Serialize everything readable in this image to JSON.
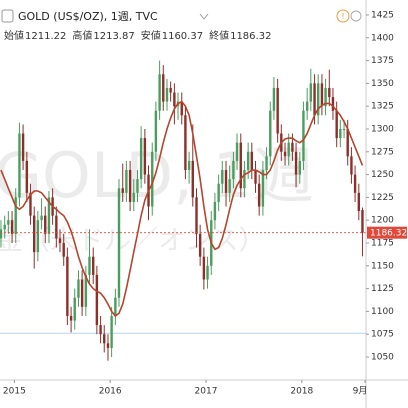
{
  "chart_data": {
    "type": "candlestick",
    "title": "GOLD (US$/OZ), 1週, TVC",
    "ohlc_header": [
      {
        "label": "始値",
        "value": 1211.22
      },
      {
        "label": "高値",
        "value": 1213.87
      },
      {
        "label": "安値",
        "value": 1160.37
      },
      {
        "label": "終値",
        "value": 1186.32
      }
    ],
    "watermark": [
      "GOLD, 1週",
      "金（米ドル／オンス）"
    ],
    "x": [
      2014.86,
      2014.899,
      2014.937,
      2014.976,
      2015.014,
      2015.053,
      2015.091,
      2015.13,
      2015.168,
      2015.207,
      2015.245,
      2015.284,
      2015.322,
      2015.361,
      2015.399,
      2015.438,
      2015.476,
      2015.515,
      2015.553,
      2015.592,
      2015.63,
      2015.669,
      2015.707,
      2015.746,
      2015.784,
      2015.823,
      2015.861,
      2015.9,
      2015.938,
      2015.977,
      2016.015,
      2016.054,
      2016.092,
      2016.131,
      2016.169,
      2016.208,
      2016.246,
      2016.285,
      2016.323,
      2016.362,
      2016.4,
      2016.439,
      2016.477,
      2016.516,
      2016.554,
      2016.593,
      2016.631,
      2016.67,
      2016.708,
      2016.747,
      2016.785,
      2016.824,
      2016.862,
      2016.901,
      2016.939,
      2016.978,
      2017.016,
      2017.055,
      2017.093,
      2017.132,
      2017.17,
      2017.209,
      2017.247,
      2017.286,
      2017.324,
      2017.363,
      2017.401,
      2017.44,
      2017.478,
      2017.517,
      2017.555,
      2017.594,
      2017.632,
      2017.671,
      2017.709,
      2017.748,
      2017.786,
      2017.825,
      2017.863,
      2017.902,
      2017.94,
      2017.979,
      2018.017,
      2018.056,
      2018.094,
      2018.133,
      2018.171,
      2018.21,
      2018.248,
      2018.287,
      2018.325,
      2018.364,
      2018.402,
      2018.441,
      2018.479,
      2018.518,
      2018.556,
      2018.595,
      2018.633
    ],
    "open": [
      1180,
      1190,
      1195,
      1200,
      1185,
      1225,
      1295,
      1265,
      1230,
      1205,
      1165,
      1200,
      1205,
      1185,
      1225,
      1205,
      1180,
      1175,
      1160,
      1095,
      1090,
      1115,
      1135,
      1105,
      1140,
      1160,
      1140,
      1085,
      1075,
      1065,
      1060,
      1095,
      1115,
      1235,
      1230,
      1255,
      1220,
      1230,
      1245,
      1290,
      1250,
      1215,
      1275,
      1320,
      1360,
      1330,
      1345,
      1340,
      1325,
      1330,
      1315,
      1255,
      1265,
      1225,
      1185,
      1160,
      1135,
      1150,
      1200,
      1220,
      1240,
      1255,
      1230,
      1245,
      1265,
      1285,
      1235,
      1255,
      1275,
      1255,
      1240,
      1215,
      1255,
      1270,
      1320,
      1345,
      1295,
      1275,
      1270,
      1285,
      1275,
      1250,
      1265,
      1320,
      1330,
      1350,
      1315,
      1350,
      1325,
      1345,
      1335,
      1320,
      1290,
      1300,
      1300,
      1270,
      1250,
      1230,
      1211.22
    ],
    "high": [
      1200,
      1205,
      1210,
      1210,
      1235,
      1307,
      1305,
      1275,
      1240,
      1215,
      1210,
      1224,
      1215,
      1232,
      1235,
      1215,
      1190,
      1185,
      1170,
      1105,
      1125,
      1145,
      1145,
      1150,
      1190,
      1170,
      1150,
      1095,
      1085,
      1075,
      1105,
      1125,
      1245,
      1262,
      1265,
      1265,
      1245,
      1255,
      1303,
      1300,
      1260,
      1285,
      1330,
      1375,
      1370,
      1355,
      1352,
      1350,
      1340,
      1340,
      1325,
      1275,
      1305,
      1235,
      1195,
      1170,
      1160,
      1210,
      1230,
      1250,
      1265,
      1265,
      1260,
      1275,
      1295,
      1295,
      1265,
      1285,
      1285,
      1265,
      1250,
      1265,
      1280,
      1330,
      1357,
      1355,
      1305,
      1285,
      1295,
      1295,
      1285,
      1275,
      1330,
      1345,
      1366,
      1360,
      1360,
      1360,
      1355,
      1365,
      1345,
      1330,
      1310,
      1310,
      1310,
      1280,
      1260,
      1240,
      1213.87
    ],
    "low": [
      1170,
      1180,
      1185,
      1175,
      1175,
      1215,
      1255,
      1220,
      1195,
      1147,
      1155,
      1190,
      1175,
      1175,
      1195,
      1170,
      1165,
      1150,
      1085,
      1077,
      1080,
      1105,
      1095,
      1095,
      1130,
      1130,
      1075,
      1065,
      1055,
      1046,
      1050,
      1085,
      1105,
      1220,
      1220,
      1210,
      1210,
      1220,
      1235,
      1240,
      1200,
      1205,
      1265,
      1310,
      1320,
      1320,
      1330,
      1305,
      1310,
      1305,
      1245,
      1240,
      1215,
      1170,
      1150,
      1124,
      1125,
      1140,
      1190,
      1210,
      1230,
      1215,
      1220,
      1235,
      1255,
      1225,
      1225,
      1245,
      1245,
      1230,
      1205,
      1205,
      1245,
      1260,
      1310,
      1285,
      1265,
      1260,
      1260,
      1265,
      1236,
      1240,
      1255,
      1310,
      1320,
      1305,
      1305,
      1315,
      1315,
      1325,
      1310,
      1280,
      1280,
      1290,
      1260,
      1240,
      1220,
      1200,
      1160.37
    ],
    "close": [
      1190,
      1195,
      1200,
      1185,
      1225,
      1295,
      1265,
      1230,
      1205,
      1165,
      1200,
      1205,
      1185,
      1225,
      1205,
      1180,
      1175,
      1160,
      1095,
      1090,
      1115,
      1135,
      1105,
      1140,
      1160,
      1140,
      1085,
      1075,
      1065,
      1060,
      1095,
      1115,
      1235,
      1230,
      1255,
      1220,
      1230,
      1245,
      1290,
      1250,
      1215,
      1275,
      1320,
      1360,
      1330,
      1345,
      1340,
      1325,
      1330,
      1315,
      1255,
      1265,
      1225,
      1185,
      1160,
      1135,
      1150,
      1200,
      1220,
      1240,
      1255,
      1230,
      1245,
      1265,
      1285,
      1235,
      1255,
      1275,
      1255,
      1240,
      1215,
      1255,
      1270,
      1320,
      1345,
      1295,
      1275,
      1270,
      1285,
      1275,
      1250,
      1265,
      1320,
      1330,
      1350,
      1315,
      1350,
      1325,
      1345,
      1335,
      1320,
      1290,
      1300,
      1300,
      1270,
      1250,
      1230,
      1210,
      1186.32
    ],
    "ma": [
      1255,
      1245,
      1235,
      1225,
      1215,
      1212,
      1215,
      1222,
      1228,
      1232,
      1232,
      1230,
      1225,
      1220,
      1215,
      1212,
      1208,
      1205,
      1198,
      1188,
      1175,
      1160,
      1148,
      1138,
      1130,
      1125,
      1122,
      1120,
      1115,
      1108,
      1100,
      1095,
      1098,
      1108,
      1125,
      1145,
      1165,
      1185,
      1205,
      1222,
      1232,
      1240,
      1252,
      1268,
      1285,
      1300,
      1312,
      1322,
      1328,
      1330,
      1325,
      1315,
      1295,
      1270,
      1245,
      1215,
      1190,
      1175,
      1168,
      1170,
      1180,
      1195,
      1212,
      1228,
      1238,
      1245,
      1250,
      1252,
      1255,
      1255,
      1253,
      1250,
      1250,
      1255,
      1265,
      1277,
      1285,
      1289,
      1290,
      1290,
      1287,
      1285,
      1288,
      1295,
      1305,
      1315,
      1322,
      1326,
      1328,
      1328,
      1325,
      1320,
      1315,
      1308,
      1300,
      1290,
      1280,
      1270,
      1260
    ],
    "up_color": "#4a9d5e",
    "down_color": "#8c2f2a",
    "ma_color": "#b5452d",
    "hline": 1076,
    "hline_color": "#b7d3ea",
    "last_price_color": "#e0483a",
    "xlim": [
      2014.85,
      2018.67
    ],
    "xticks": [
      2015,
      2016,
      2017,
      2018,
      {
        "value": 2018.66,
        "label": "9月"
      }
    ],
    "ylim": [
      1024.8,
      1441.4
    ],
    "yticks": [
      1050,
      1075,
      1100,
      1125,
      1150,
      1175,
      1200,
      1225,
      1250,
      1275,
      1300,
      1325,
      1350,
      1375,
      1400,
      1425
    ],
    "grid": false
  }
}
